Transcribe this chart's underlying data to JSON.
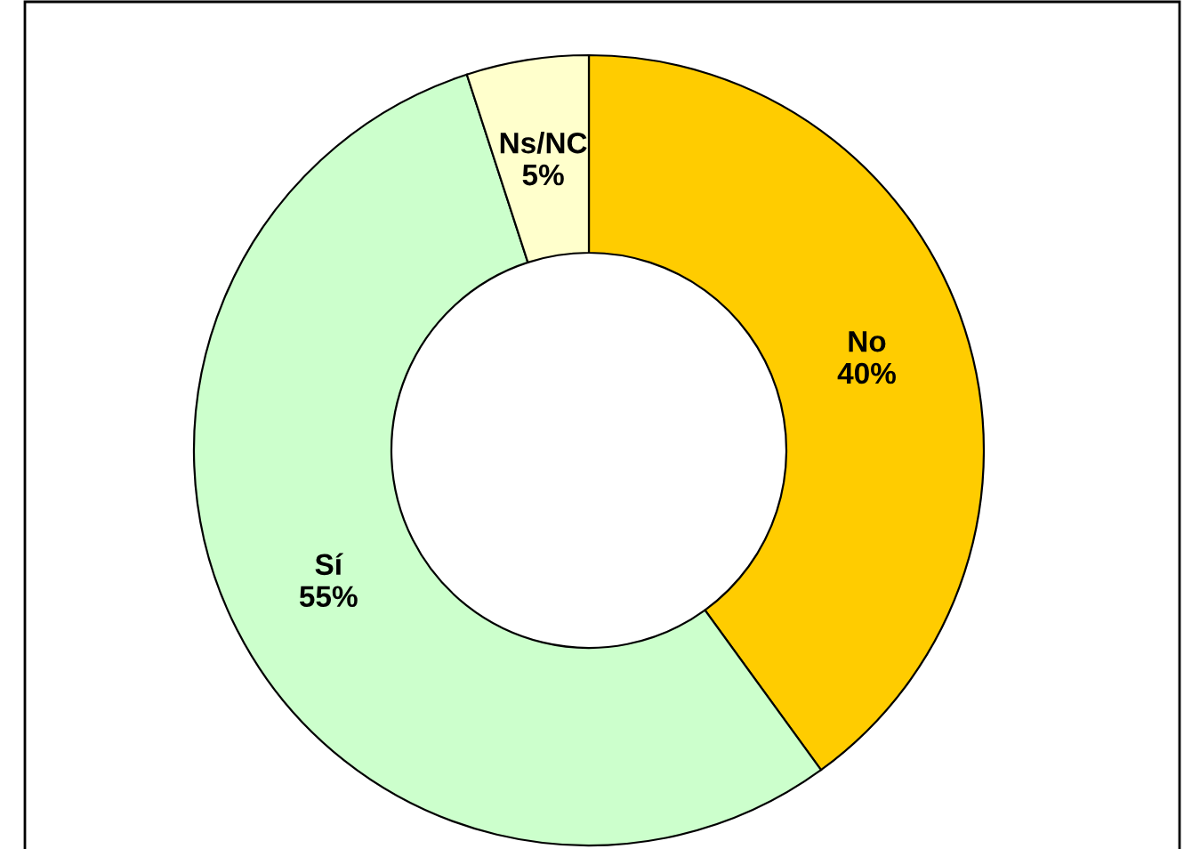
{
  "chart_data": {
    "type": "donut",
    "categories": [
      "No",
      "Sí",
      "Ns/NC"
    ],
    "values": [
      40,
      55,
      5
    ],
    "value_labels": [
      "40%",
      "55%",
      "5%"
    ],
    "colors": [
      "#ffcc00",
      "#ccffcc",
      "#ffffcc"
    ],
    "legend": false
  }
}
